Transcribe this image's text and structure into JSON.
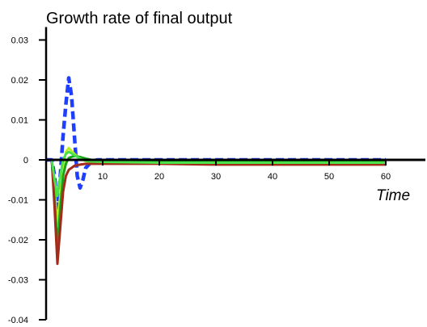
{
  "chart_data": {
    "type": "line",
    "title": "Growth rate of final output",
    "xlabel": "Time",
    "ylabel": "",
    "xlim": [
      0,
      63
    ],
    "ylim": [
      -0.04,
      0.03
    ],
    "x_ticks": [
      10,
      20,
      30,
      40,
      50,
      60
    ],
    "y_ticks": [
      0.03,
      0.02,
      0.01,
      0,
      -0.01,
      -0.02,
      -0.03,
      -0.04
    ],
    "y_tick_labels": [
      "0.03",
      "0.02",
      "0.01",
      "0",
      "-0.01",
      "-0.02",
      "-0.03",
      "-0.04"
    ],
    "grid": false,
    "series": [
      {
        "color": "#1f3fff",
        "style": "dashed",
        "x": [
          0,
          1,
          1.5,
          2,
          2.5,
          3,
          3.5,
          4,
          4.5,
          5,
          5.5,
          6,
          6.5,
          7,
          8,
          9,
          10,
          15,
          20,
          30,
          40,
          50,
          60
        ],
        "y": [
          0,
          0,
          -0.004,
          -0.012,
          -0.004,
          0.006,
          0.014,
          0.0205,
          0.016,
          0.006,
          -0.004,
          -0.007,
          -0.005,
          -0.002,
          -0.0005,
          0,
          0,
          0,
          0,
          0,
          0,
          0,
          0
        ]
      },
      {
        "color": "#b9f025",
        "style": "solid",
        "x": [
          0,
          1,
          1.5,
          2,
          2.5,
          3,
          3.5,
          4,
          5,
          6,
          7,
          8,
          9,
          10,
          15,
          20,
          30,
          40,
          50,
          60
        ],
        "y": [
          0,
          0,
          -0.008,
          -0.016,
          -0.009,
          -0.002,
          0.002,
          0.003,
          0.0015,
          0.0003,
          -0.0003,
          -0.0005,
          -0.0006,
          -0.0006,
          -0.0006,
          -0.0006,
          -0.0006,
          -0.0006,
          -0.0006,
          -0.0006
        ]
      },
      {
        "color": "#15a51c",
        "style": "solid",
        "x": [
          0,
          1,
          1.5,
          2,
          2.5,
          3,
          3.5,
          4,
          5,
          6,
          7,
          8,
          10,
          15,
          20,
          30,
          40,
          50,
          60
        ],
        "y": [
          0,
          0,
          -0.01,
          -0.022,
          -0.012,
          -0.004,
          -0.001,
          0.0005,
          0.001,
          0.0007,
          0.0003,
          0,
          -0.0002,
          -0.0003,
          -0.0004,
          -0.0005,
          -0.0005,
          -0.0005,
          -0.0005
        ]
      },
      {
        "color": "#a32b1a",
        "style": "solid",
        "x": [
          0,
          1,
          1.5,
          2,
          2.5,
          3,
          3.5,
          4,
          5,
          6,
          7,
          8,
          10,
          15,
          20,
          30,
          40,
          50,
          60
        ],
        "y": [
          0,
          0,
          -0.012,
          -0.026,
          -0.017,
          -0.008,
          -0.004,
          -0.0025,
          -0.0015,
          -0.0012,
          -0.001,
          -0.001,
          -0.001,
          -0.001,
          -0.001,
          -0.0012,
          -0.0012,
          -0.0012,
          -0.0012
        ]
      },
      {
        "color": "#4ae24a",
        "style": "solid",
        "x": [
          0,
          1,
          1.5,
          2,
          2.5,
          3,
          3.5,
          4,
          5,
          6,
          7,
          8,
          10,
          15,
          20,
          30,
          40,
          50,
          60
        ],
        "y": [
          0,
          0,
          -0.005,
          -0.009,
          -0.004,
          0,
          0.0015,
          0.002,
          0.0012,
          0.0003,
          -0.0002,
          -0.0004,
          -0.0005,
          -0.0006,
          -0.0007,
          -0.0007,
          -0.0007,
          -0.0007,
          -0.0007
        ]
      }
    ]
  }
}
